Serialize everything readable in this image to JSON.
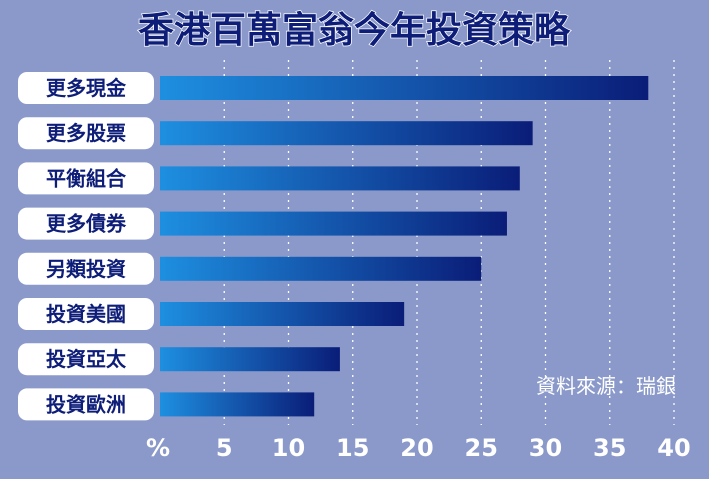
{
  "colors": {
    "background": "#8a99c9",
    "title": "#0d1d78",
    "title_outline": "#ffffff",
    "label_pill": "#ffffff",
    "label_text": "#0d1d78",
    "tick_text": "#ffffff",
    "gridline": "#ffffff",
    "bar_start": "#1e8fe0",
    "bar_end": "#0a1d78",
    "source_text": "#ffffff"
  },
  "source": "資料來源：瑞銀",
  "chart_data": {
    "type": "bar",
    "orientation": "horizontal",
    "title": "香港百萬富翁今年投資策略",
    "xlabel": "%",
    "ylabel": "",
    "categories": [
      "更多現金",
      "更多股票",
      "平衡組合",
      "更多債券",
      "另類投資",
      "投資美國",
      "投資亞太",
      "投資歐洲"
    ],
    "values": [
      38,
      29,
      28,
      27,
      25,
      19,
      14,
      12
    ],
    "xlim": [
      0,
      40
    ],
    "xticks": [
      5,
      10,
      15,
      20,
      25,
      30,
      35,
      40
    ],
    "xtick_labels": [
      "5",
      "10",
      "15",
      "20",
      "25",
      "30",
      "35",
      "40"
    ],
    "grid": "vertical-dotted",
    "legend": "none"
  }
}
